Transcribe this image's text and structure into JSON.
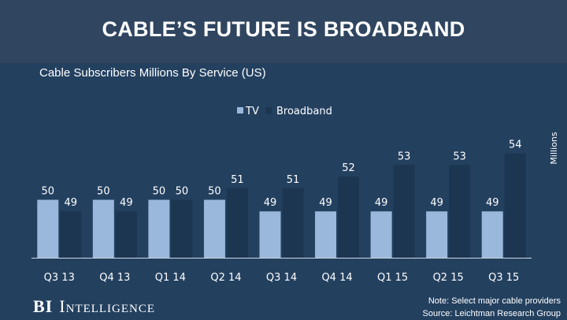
{
  "header": {
    "title": "CABLE’S FUTURE IS BROADBAND"
  },
  "chart_data": {
    "type": "bar",
    "title": "Cable Subscribers Millions By Service (US)",
    "categories": [
      "Q3 13",
      "Q4 13",
      "Q1 14",
      "Q2 14",
      "Q3 14",
      "Q4 14",
      "Q1 15",
      "Q2 15",
      "Q3 15"
    ],
    "series": [
      {
        "name": "TV",
        "color": "#9ab8dc",
        "values": [
          50,
          50,
          50,
          50,
          49,
          49,
          49,
          49,
          49
        ]
      },
      {
        "name": "Broadband",
        "color": "#1c3551",
        "values": [
          49,
          49,
          50,
          51,
          51,
          52,
          53,
          53,
          54
        ]
      }
    ],
    "ylabel": "Millions",
    "ylim": [
      45,
      55
    ],
    "legend_position": "top-center",
    "grid": false
  },
  "footer": {
    "brand_bi": "BI",
    "brand_intelligence": "Intelligence",
    "note": "Note: Select major cable providers",
    "source": "Source: Leichtman Research Group"
  }
}
